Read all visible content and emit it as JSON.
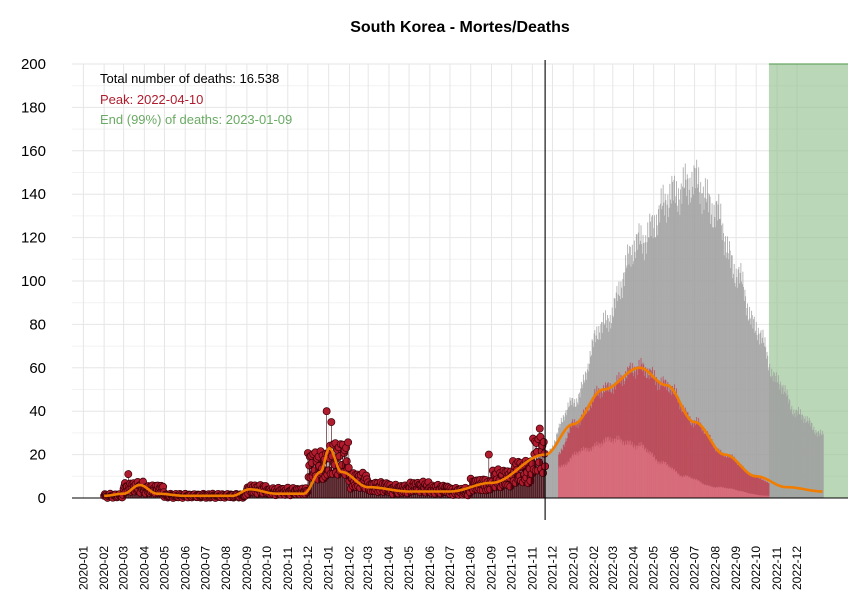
{
  "chart_data": {
    "type": "bar",
    "title": "South Korea - Mortes/Deaths",
    "xlabel": "",
    "ylabel": "",
    "ylim": [
      0,
      200
    ],
    "yticks": [
      0,
      20,
      40,
      60,
      80,
      100,
      120,
      140,
      160,
      180,
      200
    ],
    "xticks": [
      "2020-01",
      "2020-02",
      "2020-03",
      "2020-04",
      "2020-05",
      "2020-06",
      "2020-07",
      "2020-08",
      "2020-09",
      "2020-10",
      "2020-11",
      "2020-12",
      "2021-01",
      "2021-02",
      "2021-03",
      "2021-04",
      "2021-05",
      "2021-06",
      "2021-07",
      "2021-08",
      "2021-09",
      "2021-10",
      "2021-11",
      "2021-12",
      "2022-01",
      "2022-02",
      "2022-03",
      "2022-04",
      "2022-05",
      "2022-06",
      "2022-07",
      "2022-08",
      "2022-09",
      "2022-10",
      "2022-11",
      "2022-12"
    ],
    "xlim": [
      "2019-12-15",
      "2023-02-15"
    ],
    "grid": true,
    "annotations": {
      "total": "Total number of deaths: 16.538",
      "peak": "Peak: 2022-04-10",
      "end": "End (99%) of deaths: 2023-01-09"
    },
    "colors": {
      "observed_points": "#b01c2e",
      "observed_point_edge": "#3a0008",
      "fitted_curve": "#f07d00",
      "forecast_median_band": "#c0394b",
      "forecast_upper_band": "#a0a0a0",
      "end_region": "#8fbf8a",
      "peak_text": "#b01c2e",
      "end_text": "#6aaa64"
    },
    "today_line": "2021-11-20",
    "end_region_start": "2022-10-20",
    "observed_daily_deaths_monthly_avg": [
      {
        "month": "2020-02",
        "value": 1
      },
      {
        "month": "2020-03",
        "value": 5
      },
      {
        "month": "2020-04",
        "value": 4
      },
      {
        "month": "2020-05",
        "value": 1
      },
      {
        "month": "2020-06",
        "value": 1
      },
      {
        "month": "2020-07",
        "value": 1
      },
      {
        "month": "2020-08",
        "value": 1
      },
      {
        "month": "2020-09",
        "value": 4
      },
      {
        "month": "2020-10",
        "value": 3
      },
      {
        "month": "2020-11",
        "value": 3
      },
      {
        "month": "2020-12",
        "value": 15
      },
      {
        "month": "2021-01",
        "value": 18
      },
      {
        "month": "2021-02",
        "value": 8
      },
      {
        "month": "2021-03",
        "value": 5
      },
      {
        "month": "2021-04",
        "value": 4
      },
      {
        "month": "2021-05",
        "value": 5
      },
      {
        "month": "2021-06",
        "value": 4
      },
      {
        "month": "2021-07",
        "value": 3
      },
      {
        "month": "2021-08",
        "value": 6
      },
      {
        "month": "2021-09",
        "value": 9
      },
      {
        "month": "2021-10",
        "value": 12
      },
      {
        "month": "2021-11",
        "value": 20
      }
    ],
    "observed_spikes": [
      {
        "date": "2020-03-08",
        "value": 11
      },
      {
        "date": "2020-12-29",
        "value": 40
      },
      {
        "date": "2021-01-05",
        "value": 35
      },
      {
        "date": "2021-08-28",
        "value": 20
      },
      {
        "date": "2021-11-12",
        "value": 32
      }
    ],
    "fitted_curve": [
      {
        "date": "2020-02-01",
        "value": 1
      },
      {
        "date": "2020-03-01",
        "value": 2
      },
      {
        "date": "2020-03-25",
        "value": 6
      },
      {
        "date": "2020-04-20",
        "value": 2
      },
      {
        "date": "2020-06-01",
        "value": 1
      },
      {
        "date": "2020-08-10",
        "value": 1
      },
      {
        "date": "2020-09-05",
        "value": 4
      },
      {
        "date": "2020-10-15",
        "value": 2
      },
      {
        "date": "2020-11-25",
        "value": 2
      },
      {
        "date": "2020-12-20",
        "value": 12
      },
      {
        "date": "2021-01-02",
        "value": 23
      },
      {
        "date": "2021-01-20",
        "value": 12
      },
      {
        "date": "2021-03-01",
        "value": 5
      },
      {
        "date": "2021-05-01",
        "value": 3
      },
      {
        "date": "2021-07-01",
        "value": 3
      },
      {
        "date": "2021-09-01",
        "value": 7
      },
      {
        "date": "2021-11-20",
        "value": 20
      },
      {
        "date": "2022-01-01",
        "value": 34
      },
      {
        "date": "2022-02-15",
        "value": 50
      },
      {
        "date": "2022-04-10",
        "value": 60
      },
      {
        "date": "2022-05-20",
        "value": 52
      },
      {
        "date": "2022-07-01",
        "value": 35
      },
      {
        "date": "2022-08-15",
        "value": 20
      },
      {
        "date": "2022-10-01",
        "value": 10
      },
      {
        "date": "2022-11-15",
        "value": 5
      },
      {
        "date": "2023-01-09",
        "value": 3
      }
    ],
    "forecast_upper": [
      {
        "date": "2021-11-20",
        "value": 20
      },
      {
        "date": "2022-01-01",
        "value": 44
      },
      {
        "date": "2022-02-15",
        "value": 80
      },
      {
        "date": "2022-04-10",
        "value": 118
      },
      {
        "date": "2022-06-01",
        "value": 140
      },
      {
        "date": "2022-07-01",
        "value": 146
      },
      {
        "date": "2022-08-01",
        "value": 132
      },
      {
        "date": "2022-09-01",
        "value": 104
      },
      {
        "date": "2022-10-01",
        "value": 78
      },
      {
        "date": "2022-11-01",
        "value": 54
      },
      {
        "date": "2022-12-01",
        "value": 39
      },
      {
        "date": "2023-01-09",
        "value": 29
      }
    ],
    "forecast_median": [
      {
        "date": "2021-12-10",
        "value": 20
      },
      {
        "date": "2022-01-01",
        "value": 34
      },
      {
        "date": "2022-02-15",
        "value": 50
      },
      {
        "date": "2022-04-10",
        "value": 60
      },
      {
        "date": "2022-05-20",
        "value": 52
      },
      {
        "date": "2022-07-01",
        "value": 35
      },
      {
        "date": "2022-08-15",
        "value": 20
      },
      {
        "date": "2022-10-01",
        "value": 10
      },
      {
        "date": "2022-10-20",
        "value": 7
      }
    ],
    "forecast_lower": [
      {
        "date": "2021-12-10",
        "value": 14
      },
      {
        "date": "2022-01-15",
        "value": 22
      },
      {
        "date": "2022-03-01",
        "value": 27
      },
      {
        "date": "2022-04-10",
        "value": 24
      },
      {
        "date": "2022-05-15",
        "value": 16
      },
      {
        "date": "2022-06-15",
        "value": 10
      },
      {
        "date": "2022-08-01",
        "value": 5
      },
      {
        "date": "2022-10-20",
        "value": 1
      }
    ]
  }
}
